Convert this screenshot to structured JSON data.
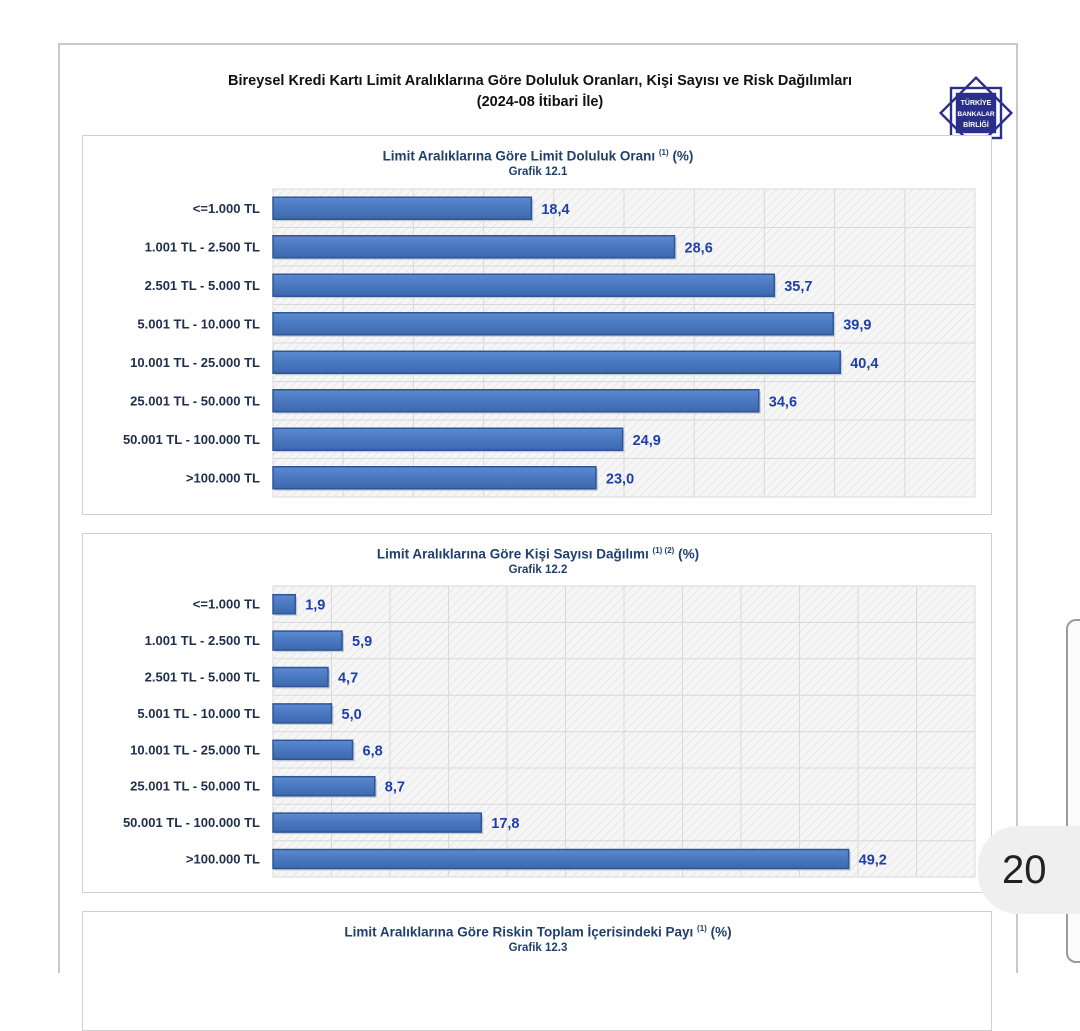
{
  "header": {
    "title_line1": "Bireysel Kredi Kartı Limit Aralıklarına Göre Doluluk Oranları, Kişi Sayısı ve Risk Dağılımları",
    "title_line2": "(2024-08 İtibari İle)"
  },
  "logo": {
    "text1": "TÜRKİYE",
    "text2": "BANKALAR",
    "text3": "BİRLİĞİ",
    "color": "#2b2f8c"
  },
  "colors": {
    "bar": "#4a78c0",
    "bar_edge": "#2e5696",
    "value": "#1f3fa8",
    "label": "#1f2e4a",
    "title": "#1f3f6e"
  },
  "chart_data": [
    {
      "type": "bar",
      "orientation": "horizontal",
      "title": "Limit Aralıklarına Göre Limit Doluluk Oranı",
      "title_sup": "(1)",
      "title_suffix": "(%)",
      "subtitle": "Grafik 12.1",
      "categories": [
        "<=1.000 TL",
        "1.001 TL - 2.500 TL",
        "2.501 TL - 5.000 TL",
        "5.001 TL - 10.000 TL",
        "10.001 TL - 25.000 TL",
        "25.001 TL - 50.000 TL",
        "50.001 TL - 100.000 TL",
        ">100.000 TL"
      ],
      "values": [
        18.4,
        28.6,
        35.7,
        39.9,
        40.4,
        34.6,
        24.9,
        23.0
      ],
      "value_labels": [
        "18,4",
        "28,6",
        "35,7",
        "39,9",
        "40,4",
        "34,6",
        "24,9",
        "23,0"
      ],
      "xlim": [
        0,
        50
      ],
      "grid": true
    },
    {
      "type": "bar",
      "orientation": "horizontal",
      "title": "Limit Aralıklarına Göre Kişi Sayısı Dağılımı",
      "title_sup": "(1) (2)",
      "title_suffix": "(%)",
      "subtitle": "Grafik 12.2",
      "categories": [
        "<=1.000 TL",
        "1.001 TL - 2.500 TL",
        "2.501 TL - 5.000 TL",
        "5.001 TL - 10.000 TL",
        "10.001 TL - 25.000 TL",
        "25.001 TL - 50.000 TL",
        "50.001 TL - 100.000 TL",
        ">100.000 TL"
      ],
      "values": [
        1.9,
        5.9,
        4.7,
        5.0,
        6.8,
        8.7,
        17.8,
        49.2
      ],
      "value_labels": [
        "1,9",
        "5,9",
        "4,7",
        "5,0",
        "6,8",
        "8,7",
        "17,8",
        "49,2"
      ],
      "xlim": [
        0,
        60
      ],
      "grid": true
    },
    {
      "type": "bar",
      "orientation": "horizontal",
      "title": "Limit Aralıklarına Göre Riskin Toplam İçerisindeki Payı",
      "title_sup": "(1)",
      "title_suffix": "(%)",
      "subtitle": "Grafik 12.3"
    }
  ],
  "page_number": "20"
}
